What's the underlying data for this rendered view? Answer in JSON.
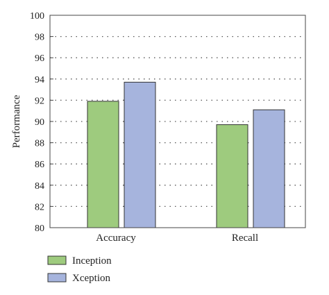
{
  "chart_data": {
    "type": "bar",
    "categories": [
      "Accuracy",
      "Recall"
    ],
    "series": [
      {
        "name": "Inception",
        "values": [
          91.9,
          89.7
        ],
        "color": "#9ecb7e"
      },
      {
        "name": "Xception",
        "values": [
          93.7,
          91.1
        ],
        "color": "#a6b4dd"
      }
    ],
    "ylabel": "Performance",
    "xlabel": "",
    "ylim": [
      80,
      100
    ],
    "yticks": [
      80,
      82,
      84,
      86,
      88,
      90,
      92,
      94,
      96,
      98,
      100
    ],
    "grid": true,
    "legend": "bottom-left"
  }
}
